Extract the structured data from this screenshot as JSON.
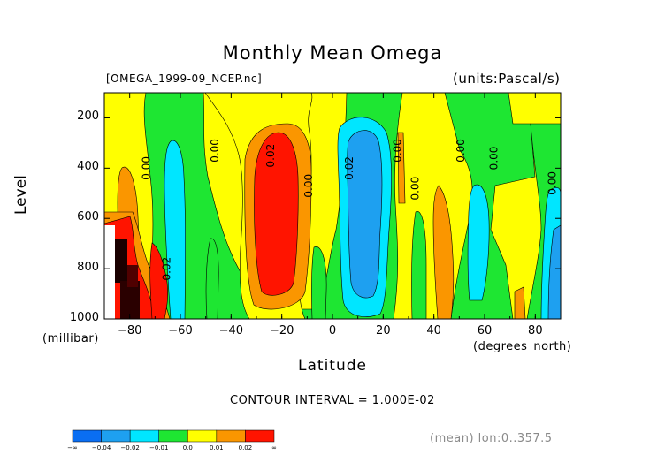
{
  "chart_data": {
    "type": "heatmap",
    "title": "Monthly Mean Omega",
    "file_label": "[OMEGA_1999-09_NCEP.nc]",
    "units_label": "(units:Pascal/s)",
    "xlabel": "Latitude",
    "x_units_label": "(degrees_north)",
    "ylabel": "Level",
    "y_units_label": "(millibar)",
    "xlim": [
      -90,
      90
    ],
    "ylim": [
      1000,
      100
    ],
    "x_ticks": [
      -80,
      -60,
      -40,
      -20,
      0,
      20,
      40,
      60,
      80
    ],
    "x_tick_labels": [
      "-80",
      "-60",
      "-40",
      "-20",
      "0",
      "20",
      "40",
      "60",
      "80"
    ],
    "y_ticks": [
      200,
      400,
      600,
      800,
      1000
    ],
    "y_tick_labels": [
      "200",
      "400",
      "600",
      "800",
      "1000"
    ],
    "contour_interval_label": "CONTOUR INTERVAL = 1.000E-02",
    "footer_label": "(mean) lon:0..357.5",
    "contour_labels": [
      {
        "text": "0.00",
        "lat": -72,
        "lev": 400
      },
      {
        "text": "0.00",
        "lat": -45,
        "lev": 330
      },
      {
        "text": "0.02",
        "lat": -23,
        "lev": 350
      },
      {
        "text": "0.00",
        "lat": -8,
        "lev": 470
      },
      {
        "text": "0.02",
        "lat": 8,
        "lev": 400
      },
      {
        "text": "0.00",
        "lat": 27,
        "lev": 330
      },
      {
        "text": "0.00",
        "lat": 34,
        "lev": 480
      },
      {
        "text": "0.00",
        "lat": 52,
        "lev": 330
      },
      {
        "text": "0.00",
        "lat": 65,
        "lev": 360
      },
      {
        "text": "0.00",
        "lat": 88,
        "lev": 460
      },
      {
        "text": "0.02",
        "lat": -64,
        "lev": 800
      }
    ],
    "colorbar": {
      "labels": [
        "-∞",
        "-0.04",
        "-0.02",
        "-0.01",
        "0.0",
        "0.01",
        "0.02",
        "∞"
      ],
      "colors": [
        "#0a6ef2",
        "#1ea0f0",
        "#00e6ff",
        "#1ee632",
        "#ffff00",
        "#fa9600",
        "#ff1400"
      ]
    }
  },
  "colors": {
    "deep_blue": "#0a6ef2",
    "blue": "#1ea0f0",
    "cyan": "#00e6ff",
    "green": "#1ee632",
    "yellow": "#ffff00",
    "orange": "#fa9600",
    "red": "#ff1400"
  }
}
